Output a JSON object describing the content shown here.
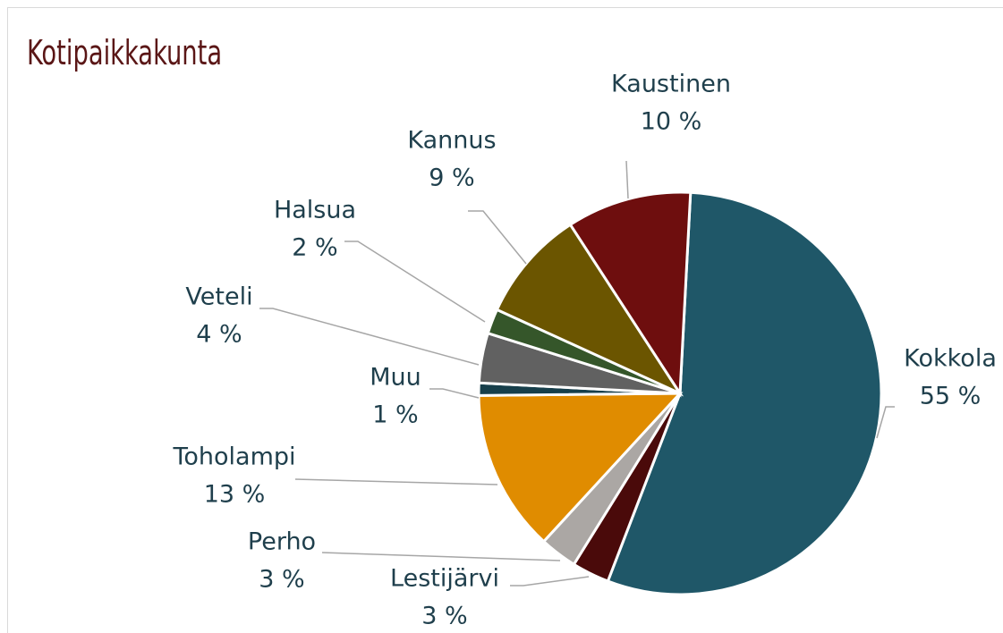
{
  "chart_data": {
    "type": "pie",
    "title": "Kotipaikkakunta",
    "categories": [
      "Kokkola",
      "Lestijärvi",
      "Perho",
      "Toholampi",
      "Muu",
      "Veteli",
      "Halsua",
      "Kannus",
      "Kaustinen"
    ],
    "values": [
      55,
      3,
      3,
      13,
      1,
      4,
      2,
      9,
      10
    ],
    "value_labels": [
      "55 %",
      "3 %",
      "3 %",
      "13 %",
      "1 %",
      "4 %",
      "2 %",
      "9 %",
      "10 %"
    ],
    "colors": [
      "#1f5768",
      "#4a0a0a",
      "#aba7a4",
      "#e08c00",
      "#173f4b",
      "#616161",
      "#35562a",
      "#6b5500",
      "#6e0e0e"
    ]
  }
}
